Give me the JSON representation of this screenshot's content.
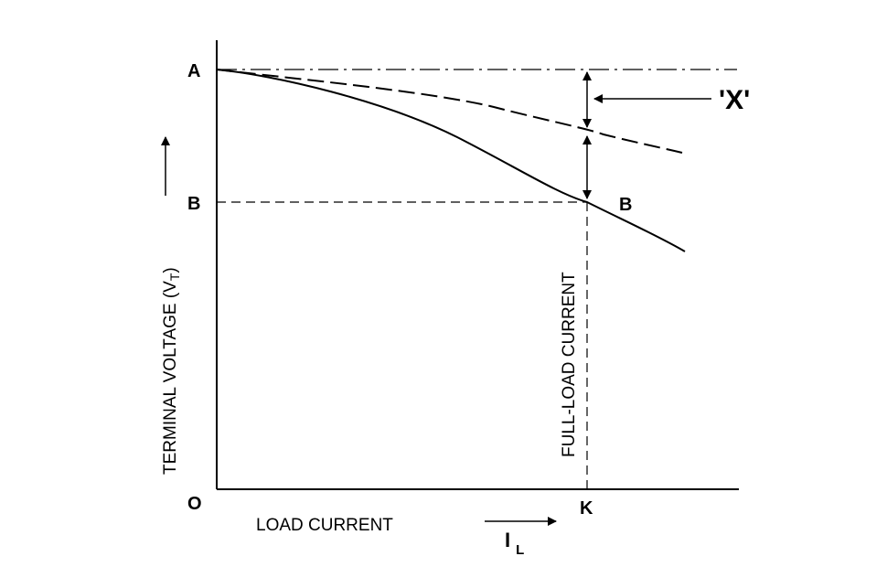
{
  "points": {
    "A": "A",
    "B_axis": "B",
    "B_curve": "B",
    "O": "O",
    "K": "K"
  },
  "axes": {
    "y_title": "TERMINAL VOLTAGE (V",
    "y_subscript": "T",
    "y_close": ")",
    "x_title": "LOAD CURRENT",
    "current_symbol": "I",
    "current_subscript": "L"
  },
  "annotations": {
    "full_load": "FULL-LOAD CURRENT",
    "callout": "'X'"
  },
  "curves": [
    {
      "style": "solid",
      "description_visible": false
    },
    {
      "style": "dashed",
      "description_visible": false
    }
  ],
  "colors": {
    "ink": "#000000",
    "background": "#ffffff"
  }
}
